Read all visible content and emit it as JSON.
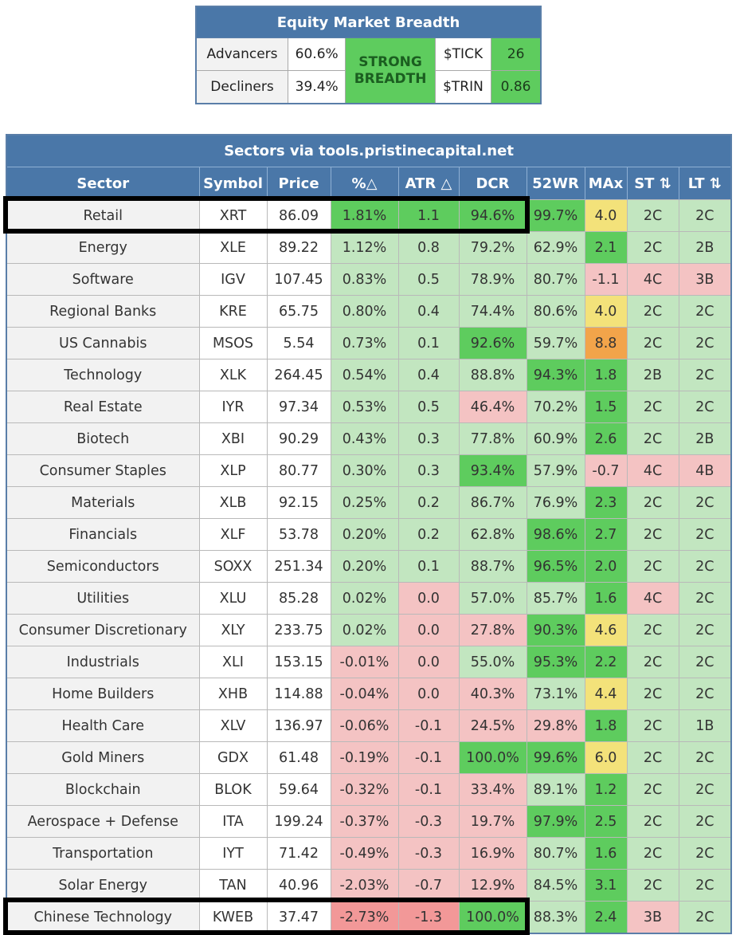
{
  "breadth": {
    "title": "Equity Market Breadth",
    "advancers_label": "Advancers",
    "advancers_value": "60.6%",
    "decliners_label": "Decliners",
    "decliners_value": "39.4%",
    "status": "STRONG BREADTH",
    "tick_label": "$TICK",
    "tick_value": "26",
    "trin_label": "$TRIN",
    "trin_value": "0.86"
  },
  "sectors": {
    "title": "Sectors via tools.pristinecapital.net",
    "columns": [
      "Sector",
      "Symbol",
      "Price",
      "%△",
      "ATR △",
      "DCR",
      "52WR",
      "MAx",
      "ST ⇅",
      "LT ⇅"
    ],
    "rows": [
      {
        "sector": "Retail",
        "symbol": "XRT",
        "price": "86.09",
        "pct": "1.81%",
        "atr": "1.1",
        "dcr": "94.6%",
        "wr52": "99.7%",
        "max": "4.0",
        "st": "2C",
        "lt": "2C"
      },
      {
        "sector": "Energy",
        "symbol": "XLE",
        "price": "89.22",
        "pct": "1.12%",
        "atr": "0.8",
        "dcr": "79.2%",
        "wr52": "62.9%",
        "max": "2.1",
        "st": "2C",
        "lt": "2B"
      },
      {
        "sector": "Software",
        "symbol": "IGV",
        "price": "107.45",
        "pct": "0.83%",
        "atr": "0.5",
        "dcr": "78.9%",
        "wr52": "80.7%",
        "max": "-1.1",
        "st": "4C",
        "lt": "3B"
      },
      {
        "sector": "Regional Banks",
        "symbol": "KRE",
        "price": "65.75",
        "pct": "0.80%",
        "atr": "0.4",
        "dcr": "74.4%",
        "wr52": "80.6%",
        "max": "4.0",
        "st": "2C",
        "lt": "2C"
      },
      {
        "sector": "US Cannabis",
        "symbol": "MSOS",
        "price": "5.54",
        "pct": "0.73%",
        "atr": "0.1",
        "dcr": "92.6%",
        "wr52": "59.7%",
        "max": "8.8",
        "st": "2C",
        "lt": "2C"
      },
      {
        "sector": "Technology",
        "symbol": "XLK",
        "price": "264.45",
        "pct": "0.54%",
        "atr": "0.4",
        "dcr": "88.8%",
        "wr52": "94.3%",
        "max": "1.8",
        "st": "2B",
        "lt": "2C"
      },
      {
        "sector": "Real Estate",
        "symbol": "IYR",
        "price": "97.34",
        "pct": "0.53%",
        "atr": "0.5",
        "dcr": "46.4%",
        "wr52": "70.2%",
        "max": "1.5",
        "st": "2C",
        "lt": "2C"
      },
      {
        "sector": "Biotech",
        "symbol": "XBI",
        "price": "90.29",
        "pct": "0.43%",
        "atr": "0.3",
        "dcr": "77.8%",
        "wr52": "60.9%",
        "max": "2.6",
        "st": "2C",
        "lt": "2B"
      },
      {
        "sector": "Consumer Staples",
        "symbol": "XLP",
        "price": "80.77",
        "pct": "0.30%",
        "atr": "0.3",
        "dcr": "93.4%",
        "wr52": "57.9%",
        "max": "-0.7",
        "st": "4C",
        "lt": "4B"
      },
      {
        "sector": "Materials",
        "symbol": "XLB",
        "price": "92.15",
        "pct": "0.25%",
        "atr": "0.2",
        "dcr": "86.7%",
        "wr52": "76.9%",
        "max": "2.3",
        "st": "2C",
        "lt": "2C"
      },
      {
        "sector": "Financials",
        "symbol": "XLF",
        "price": "53.78",
        "pct": "0.20%",
        "atr": "0.2",
        "dcr": "62.8%",
        "wr52": "98.6%",
        "max": "2.7",
        "st": "2C",
        "lt": "2C"
      },
      {
        "sector": "Semiconductors",
        "symbol": "SOXX",
        "price": "251.34",
        "pct": "0.20%",
        "atr": "0.1",
        "dcr": "88.7%",
        "wr52": "96.5%",
        "max": "2.0",
        "st": "2C",
        "lt": "2C"
      },
      {
        "sector": "Utilities",
        "symbol": "XLU",
        "price": "85.28",
        "pct": "0.02%",
        "atr": "0.0",
        "dcr": "57.0%",
        "wr52": "85.7%",
        "max": "1.6",
        "st": "4C",
        "lt": "2C"
      },
      {
        "sector": "Consumer Discretionary",
        "symbol": "XLY",
        "price": "233.75",
        "pct": "0.02%",
        "atr": "0.0",
        "dcr": "27.8%",
        "wr52": "90.3%",
        "max": "4.6",
        "st": "2C",
        "lt": "2C"
      },
      {
        "sector": "Industrials",
        "symbol": "XLI",
        "price": "153.15",
        "pct": "-0.01%",
        "atr": "0.0",
        "dcr": "55.0%",
        "wr52": "95.3%",
        "max": "2.2",
        "st": "2C",
        "lt": "2C"
      },
      {
        "sector": "Home Builders",
        "symbol": "XHB",
        "price": "114.88",
        "pct": "-0.04%",
        "atr": "0.0",
        "dcr": "40.3%",
        "wr52": "73.1%",
        "max": "4.4",
        "st": "2C",
        "lt": "2C"
      },
      {
        "sector": "Health Care",
        "symbol": "XLV",
        "price": "136.97",
        "pct": "-0.06%",
        "atr": "-0.1",
        "dcr": "24.5%",
        "wr52": "29.8%",
        "max": "1.8",
        "st": "2C",
        "lt": "1B"
      },
      {
        "sector": "Gold Miners",
        "symbol": "GDX",
        "price": "61.48",
        "pct": "-0.19%",
        "atr": "-0.1",
        "dcr": "100.0%",
        "wr52": "99.6%",
        "max": "6.0",
        "st": "2C",
        "lt": "2C"
      },
      {
        "sector": "Blockchain",
        "symbol": "BLOK",
        "price": "59.64",
        "pct": "-0.32%",
        "atr": "-0.1",
        "dcr": "33.4%",
        "wr52": "89.1%",
        "max": "1.2",
        "st": "2C",
        "lt": "2C"
      },
      {
        "sector": "Aerospace + Defense",
        "symbol": "ITA",
        "price": "199.24",
        "pct": "-0.37%",
        "atr": "-0.3",
        "dcr": "19.7%",
        "wr52": "97.9%",
        "max": "2.5",
        "st": "2C",
        "lt": "2C"
      },
      {
        "sector": "Transportation",
        "symbol": "IYT",
        "price": "71.42",
        "pct": "-0.49%",
        "atr": "-0.3",
        "dcr": "16.9%",
        "wr52": "80.7%",
        "max": "1.6",
        "st": "2C",
        "lt": "2C"
      },
      {
        "sector": "Solar Energy",
        "symbol": "TAN",
        "price": "40.96",
        "pct": "-2.03%",
        "atr": "-0.7",
        "dcr": "12.9%",
        "wr52": "84.5%",
        "max": "3.1",
        "st": "2C",
        "lt": "2C"
      },
      {
        "sector": "Chinese Technology",
        "symbol": "KWEB",
        "price": "37.47",
        "pct": "-2.73%",
        "atr": "-1.3",
        "dcr": "100.0%",
        "wr52": "88.3%",
        "max": "2.4",
        "st": "3B",
        "lt": "2C"
      }
    ]
  }
}
